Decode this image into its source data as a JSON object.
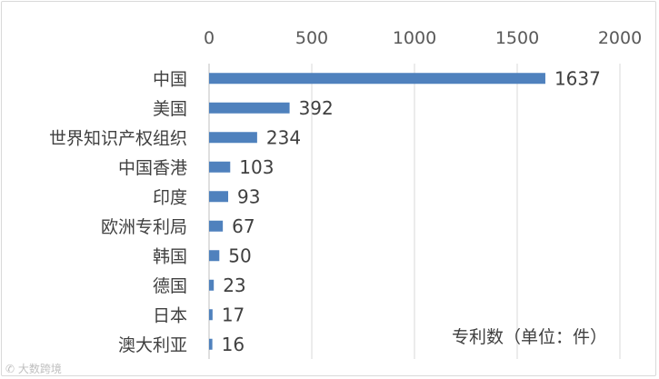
{
  "chart_data": {
    "type": "bar",
    "orientation": "horizontal",
    "categories": [
      "中国",
      "美国",
      "世界知识产权组织",
      "中国香港",
      "印度",
      "欧洲专利局",
      "韩国",
      "德国",
      "日本",
      "澳大利亚"
    ],
    "values": [
      1637,
      392,
      234,
      103,
      93,
      67,
      50,
      23,
      17,
      16
    ],
    "xlim": [
      0,
      2000
    ],
    "xticks": [
      0,
      500,
      1000,
      1500,
      2000
    ],
    "axis_position": "top",
    "grid": true,
    "legend": "none",
    "bar_color": "#4f81bd",
    "annotation": "专利数（单位：件）"
  },
  "watermark": "大数跨境"
}
